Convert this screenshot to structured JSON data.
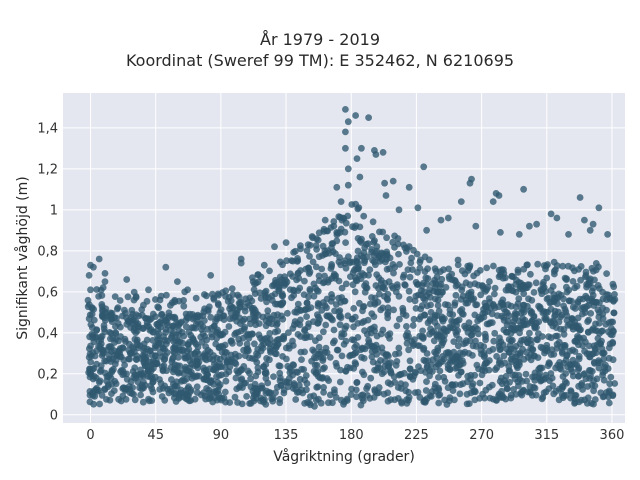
{
  "title_line1": "År 1979 - 2019",
  "title_line2": "Koordinat (Sweref 99 TM): E 352462, N 6210695",
  "chart_data": {
    "type": "scatter",
    "title": "År 1979 - 2019\nKoordinat (Sweref 99 TM): E 352462, N 6210695",
    "xlabel": "Vågriktning (grader)",
    "ylabel": "Signifikant våghöjd (m)",
    "xlim": [
      -19,
      369
    ],
    "ylim": [
      -0.04,
      1.57
    ],
    "xticks": [
      0,
      45,
      90,
      135,
      180,
      225,
      270,
      315,
      360
    ],
    "xtick_labels": [
      "0",
      "45",
      "90",
      "135",
      "180",
      "225",
      "270",
      "315",
      "360"
    ],
    "yticks": [
      0,
      0.2,
      0.4,
      0.6,
      0.8,
      1.0,
      1.2,
      1.4
    ],
    "ytick_labels": [
      "0",
      "0,2",
      "0,4",
      "0,6",
      "0,8",
      "1",
      "1,2",
      "1,4"
    ],
    "grid": true,
    "background_color": "#e5e7f0",
    "marker_color": "#2f5870",
    "envelope": {
      "direction": [
        0,
        10,
        20,
        30,
        45,
        60,
        75,
        90,
        105,
        120,
        135,
        150,
        160,
        170,
        180,
        190,
        200,
        215,
        225,
        240,
        255,
        270,
        285,
        300,
        315,
        330,
        345,
        360
      ],
      "dense_upper_hs": [
        0.55,
        0.52,
        0.47,
        0.5,
        0.5,
        0.48,
        0.5,
        0.5,
        0.57,
        0.6,
        0.7,
        0.75,
        0.82,
        0.9,
        0.95,
        0.9,
        0.82,
        0.75,
        0.72,
        0.68,
        0.66,
        0.65,
        0.66,
        0.64,
        0.65,
        0.64,
        0.65,
        0.62
      ],
      "dense_lower_hs": [
        0.05,
        0.05,
        0.06,
        0.06,
        0.06,
        0.06,
        0.06,
        0.06,
        0.05,
        0.05,
        0.05,
        0.04,
        0.02,
        0.02,
        0.03,
        0.04,
        0.05,
        0.05,
        0.05,
        0.05,
        0.05,
        0.05,
        0.05,
        0.05,
        0.05,
        0.05,
        0.05,
        0.05
      ]
    },
    "outliers": [
      {
        "x": 176,
        "y": 1.49
      },
      {
        "x": 183,
        "y": 1.46
      },
      {
        "x": 192,
        "y": 1.45
      },
      {
        "x": 178,
        "y": 1.43
      },
      {
        "x": 176,
        "y": 1.38
      },
      {
        "x": 187,
        "y": 1.3
      },
      {
        "x": 176,
        "y": 1.3
      },
      {
        "x": 196,
        "y": 1.29
      },
      {
        "x": 197,
        "y": 1.27
      },
      {
        "x": 202,
        "y": 1.28
      },
      {
        "x": 184,
        "y": 1.25
      },
      {
        "x": 178,
        "y": 1.2
      },
      {
        "x": 230,
        "y": 1.21
      },
      {
        "x": 209,
        "y": 1.14
      },
      {
        "x": 203,
        "y": 1.13
      },
      {
        "x": 263,
        "y": 1.15
      },
      {
        "x": 262,
        "y": 1.13
      },
      {
        "x": 220,
        "y": 1.11
      },
      {
        "x": 299,
        "y": 1.1
      },
      {
        "x": 280,
        "y": 1.08
      },
      {
        "x": 282,
        "y": 1.07
      },
      {
        "x": 204,
        "y": 1.07
      },
      {
        "x": 338,
        "y": 1.06
      },
      {
        "x": 278,
        "y": 1.04
      },
      {
        "x": 256,
        "y": 1.04
      },
      {
        "x": 351,
        "y": 1.01
      },
      {
        "x": 226,
        "y": 1.01
      },
      {
        "x": 213,
        "y": 1.0
      },
      {
        "x": 318,
        "y": 0.98
      },
      {
        "x": 322,
        "y": 0.96
      },
      {
        "x": 341,
        "y": 0.95
      },
      {
        "x": 347,
        "y": 0.93
      },
      {
        "x": 308,
        "y": 0.93
      },
      {
        "x": 303,
        "y": 0.92
      },
      {
        "x": 266,
        "y": 0.92
      },
      {
        "x": 242,
        "y": 0.95
      },
      {
        "x": 247,
        "y": 0.96
      },
      {
        "x": 345,
        "y": 0.9
      },
      {
        "x": 357,
        "y": 0.88
      },
      {
        "x": 330,
        "y": 0.88
      },
      {
        "x": 296,
        "y": 0.88
      },
      {
        "x": 283,
        "y": 0.89
      },
      {
        "x": 232,
        "y": 0.9
      },
      {
        "x": 6,
        "y": 0.76
      },
      {
        "x": 0,
        "y": 0.73
      },
      {
        "x": 2,
        "y": 0.72
      },
      {
        "x": 52,
        "y": 0.72
      },
      {
        "x": 10,
        "y": 0.69
      },
      {
        "x": -1,
        "y": 0.68
      },
      {
        "x": 83,
        "y": 0.68
      },
      {
        "x": 104,
        "y": 0.76
      },
      {
        "x": 104,
        "y": 0.74
      },
      {
        "x": 25,
        "y": 0.66
      },
      {
        "x": 10,
        "y": 0.65
      },
      {
        "x": 60,
        "y": 0.65
      },
      {
        "x": 40,
        "y": 0.61
      },
      {
        "x": 65,
        "y": 0.6
      },
      {
        "x": 67,
        "y": 0.61
      },
      {
        "x": 80,
        "y": 0.58
      },
      {
        "x": 88,
        "y": 0.59
      },
      {
        "x": 48,
        "y": 0.56
      },
      {
        "x": 120,
        "y": 0.73
      },
      {
        "x": 127,
        "y": 0.82
      },
      {
        "x": 135,
        "y": 0.84
      },
      {
        "x": 145,
        "y": 0.81
      },
      {
        "x": 153,
        "y": 0.87
      },
      {
        "x": 162,
        "y": 0.95
      },
      {
        "x": 170,
        "y": 1.11
      },
      {
        "x": 178,
        "y": 1.12
      },
      {
        "x": 186,
        "y": 1.16
      },
      {
        "x": 173,
        "y": 1.04
      }
    ]
  }
}
